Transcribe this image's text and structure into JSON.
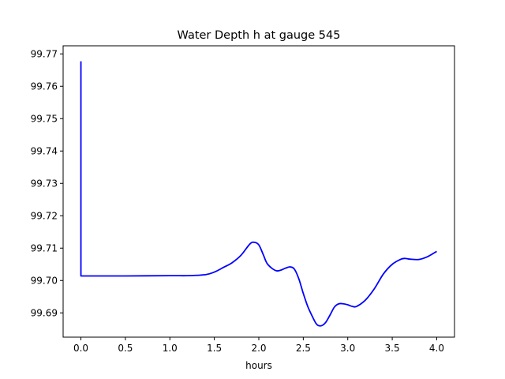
{
  "chart_data": {
    "type": "line",
    "title": "Water Depth h at gauge 545",
    "xlabel": "hours",
    "ylabel": "",
    "xlim": [
      -0.2,
      4.2
    ],
    "ylim": [
      99.6825,
      99.7725
    ],
    "grid": false,
    "x_ticks": [
      0.0,
      0.5,
      1.0,
      1.5,
      2.0,
      2.5,
      3.0,
      3.5,
      4.0
    ],
    "x_tick_labels": [
      "0.0",
      "0.5",
      "1.0",
      "1.5",
      "2.0",
      "2.5",
      "3.0",
      "3.5",
      "4.0"
    ],
    "y_ticks": [
      99.69,
      99.7,
      99.71,
      99.72,
      99.73,
      99.74,
      99.75,
      99.76,
      99.77
    ],
    "y_tick_labels": [
      "99.69",
      "99.70",
      "99.71",
      "99.72",
      "99.73",
      "99.74",
      "99.75",
      "99.76",
      "99.77"
    ],
    "line_color": "#0000ff",
    "series": [
      {
        "x": [
          0.0,
          0.0,
          0.2,
          0.5,
          1.0,
          1.2,
          1.4,
          1.5,
          1.6,
          1.7,
          1.8,
          1.9,
          1.95,
          2.0,
          2.05,
          2.1,
          2.2,
          2.3,
          2.35,
          2.4,
          2.45,
          2.5,
          2.55,
          2.6,
          2.65,
          2.7,
          2.75,
          2.8,
          2.85,
          2.9,
          2.95,
          3.0,
          3.05,
          3.1,
          3.2,
          3.3,
          3.4,
          3.5,
          3.6,
          3.65,
          3.7,
          3.8,
          3.9,
          4.0
        ],
        "y": [
          99.7677,
          99.7014,
          99.7014,
          99.7014,
          99.7015,
          99.7015,
          99.7018,
          99.7026,
          99.704,
          99.7055,
          99.7078,
          99.7113,
          99.7118,
          99.711,
          99.708,
          99.705,
          99.703,
          99.7038,
          99.7042,
          99.7035,
          99.7005,
          99.696,
          99.692,
          99.689,
          99.6865,
          99.686,
          99.687,
          99.6893,
          99.6918,
          99.6928,
          99.6928,
          99.6925,
          99.692,
          99.692,
          99.694,
          99.6975,
          99.702,
          99.705,
          99.7066,
          99.7068,
          99.7066,
          99.7065,
          99.7074,
          99.709
        ]
      }
    ]
  }
}
